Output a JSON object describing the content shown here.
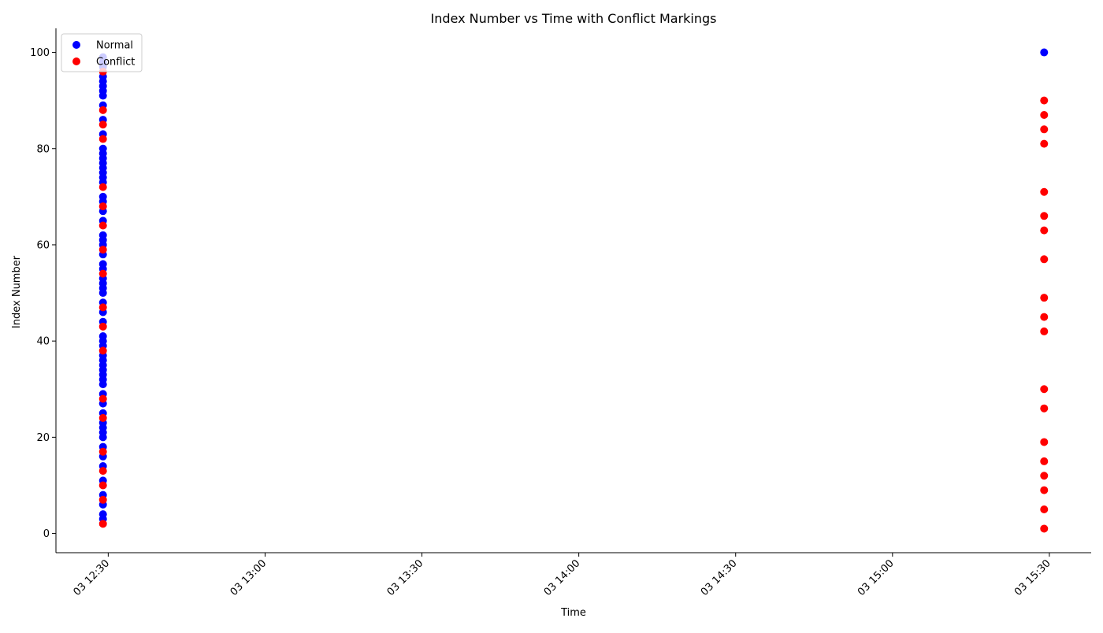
{
  "chart_data": {
    "type": "scatter",
    "title": "Index Number vs Time with Conflict Markings",
    "xlabel": "Time",
    "ylabel": "Index Number",
    "x_ticks": [
      "03 12:30",
      "03 13:00",
      "03 13:30",
      "03 14:00",
      "03 14:30",
      "03 15:00",
      "03 15:30"
    ],
    "y_ticks": [
      0,
      20,
      40,
      60,
      80,
      100
    ],
    "xlim": [
      "12:20",
      "15:38"
    ],
    "ylim": [
      -4,
      105
    ],
    "grid": false,
    "legend_position": "top-left",
    "series": [
      {
        "name": "Normal",
        "color": "#0000ff",
        "points": [
          [
            "12:29",
            3
          ],
          [
            "12:29",
            4
          ],
          [
            "12:29",
            6
          ],
          [
            "12:29",
            8
          ],
          [
            "12:29",
            11
          ],
          [
            "12:29",
            14
          ],
          [
            "12:29",
            16
          ],
          [
            "12:29",
            18
          ],
          [
            "12:29",
            20
          ],
          [
            "12:29",
            21
          ],
          [
            "12:29",
            22
          ],
          [
            "12:29",
            23
          ],
          [
            "12:29",
            25
          ],
          [
            "12:29",
            27
          ],
          [
            "12:29",
            29
          ],
          [
            "12:29",
            31
          ],
          [
            "12:29",
            32
          ],
          [
            "12:29",
            33
          ],
          [
            "12:29",
            34
          ],
          [
            "12:29",
            35
          ],
          [
            "12:29",
            36
          ],
          [
            "12:29",
            37
          ],
          [
            "12:29",
            39
          ],
          [
            "12:29",
            40
          ],
          [
            "12:29",
            41
          ],
          [
            "12:29",
            44
          ],
          [
            "12:29",
            46
          ],
          [
            "12:29",
            48
          ],
          [
            "12:29",
            50
          ],
          [
            "12:29",
            51
          ],
          [
            "12:29",
            52
          ],
          [
            "12:29",
            53
          ],
          [
            "12:29",
            55
          ],
          [
            "12:29",
            56
          ],
          [
            "12:29",
            58
          ],
          [
            "12:29",
            60
          ],
          [
            "12:29",
            61
          ],
          [
            "12:29",
            62
          ],
          [
            "12:29",
            65
          ],
          [
            "12:29",
            67
          ],
          [
            "12:29",
            69
          ],
          [
            "12:29",
            70
          ],
          [
            "12:29",
            73
          ],
          [
            "12:29",
            74
          ],
          [
            "12:29",
            75
          ],
          [
            "12:29",
            76
          ],
          [
            "12:29",
            77
          ],
          [
            "12:29",
            78
          ],
          [
            "12:29",
            79
          ],
          [
            "12:29",
            80
          ],
          [
            "12:29",
            83
          ],
          [
            "12:29",
            86
          ],
          [
            "12:29",
            89
          ],
          [
            "12:29",
            91
          ],
          [
            "12:29",
            92
          ],
          [
            "12:29",
            93
          ],
          [
            "12:29",
            94
          ],
          [
            "12:29",
            95
          ],
          [
            "12:29",
            97
          ],
          [
            "12:29",
            98
          ],
          [
            "12:29",
            99
          ],
          [
            "15:29",
            100
          ]
        ]
      },
      {
        "name": "Conflict",
        "color": "#ff0000",
        "points": [
          [
            "12:29",
            2
          ],
          [
            "12:29",
            7
          ],
          [
            "12:29",
            10
          ],
          [
            "12:29",
            13
          ],
          [
            "12:29",
            17
          ],
          [
            "12:29",
            24
          ],
          [
            "12:29",
            28
          ],
          [
            "12:29",
            38
          ],
          [
            "12:29",
            43
          ],
          [
            "12:29",
            47
          ],
          [
            "12:29",
            54
          ],
          [
            "12:29",
            59
          ],
          [
            "12:29",
            64
          ],
          [
            "12:29",
            68
          ],
          [
            "12:29",
            72
          ],
          [
            "12:29",
            82
          ],
          [
            "12:29",
            85
          ],
          [
            "12:29",
            88
          ],
          [
            "12:29",
            96
          ],
          [
            "15:29",
            1
          ],
          [
            "15:29",
            5
          ],
          [
            "15:29",
            9
          ],
          [
            "15:29",
            12
          ],
          [
            "15:29",
            15
          ],
          [
            "15:29",
            19
          ],
          [
            "15:29",
            26
          ],
          [
            "15:29",
            30
          ],
          [
            "15:29",
            42
          ],
          [
            "15:29",
            45
          ],
          [
            "15:29",
            49
          ],
          [
            "15:29",
            57
          ],
          [
            "15:29",
            63
          ],
          [
            "15:29",
            66
          ],
          [
            "15:29",
            71
          ],
          [
            "15:29",
            81
          ],
          [
            "15:29",
            84
          ],
          [
            "15:29",
            87
          ],
          [
            "15:29",
            90
          ]
        ]
      }
    ]
  }
}
